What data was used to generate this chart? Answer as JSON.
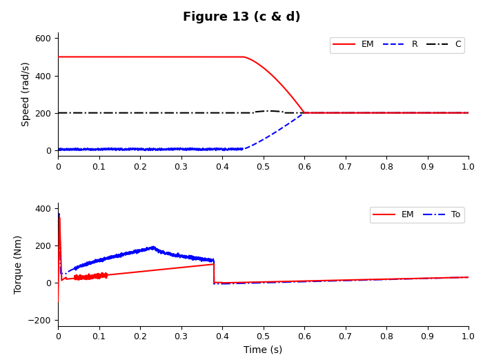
{
  "title": "Figure 13 (c & d)",
  "title_fontsize": 13,
  "subplot1": {
    "ylabel": "Speed (rad/s)",
    "ylim": [
      -30,
      630
    ],
    "yticks": [
      0,
      200,
      400,
      600
    ],
    "xlim": [
      0,
      1
    ],
    "xticks": [
      0,
      0.1,
      0.2,
      0.3,
      0.4,
      0.5,
      0.6,
      0.7,
      0.8,
      0.9,
      1
    ]
  },
  "subplot2": {
    "ylabel": "Torque (Nm)",
    "xlabel": "Time (s)",
    "ylim": [
      -230,
      430
    ],
    "yticks": [
      -200,
      0,
      200,
      400
    ],
    "xlim": [
      0,
      1
    ],
    "xticks": [
      0,
      0.1,
      0.2,
      0.3,
      0.4,
      0.5,
      0.6,
      0.7,
      0.8,
      0.9,
      1
    ]
  },
  "colors": {
    "EM": "red",
    "R": "blue",
    "C": "black",
    "To": "blue"
  }
}
